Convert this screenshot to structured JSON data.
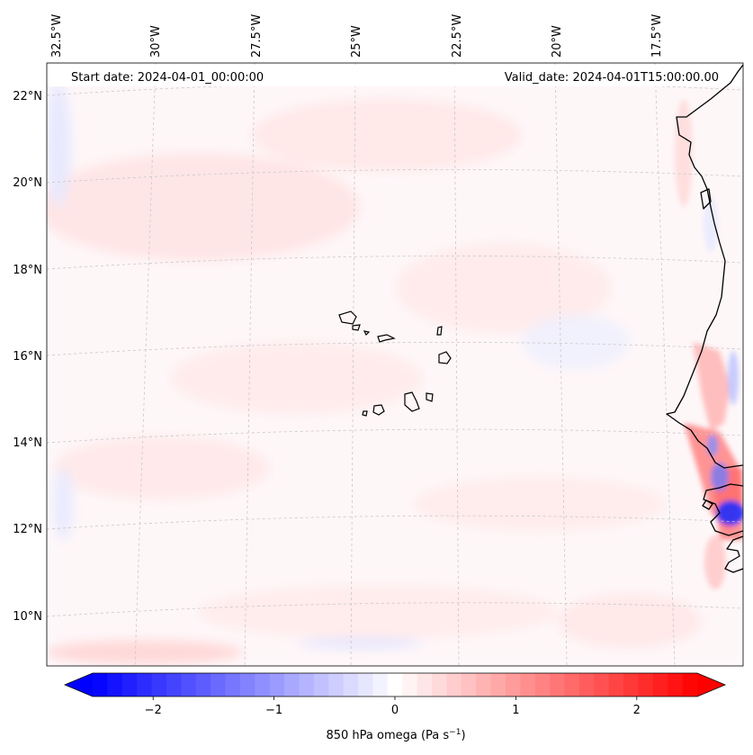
{
  "map": {
    "start_date": "Start date: 2024-04-01_00:00:00",
    "valid_date": "Valid_date: 2024-04-01T15:00:00.00",
    "lon_labels": [
      "32.5°W",
      "30°W",
      "27.5°W",
      "25°W",
      "22.5°W",
      "20°W",
      "17.5°W"
    ],
    "lat_labels": [
      "22°N",
      "20°N",
      "18°N",
      "16°N",
      "14°N",
      "12°N",
      "10°N"
    ]
  },
  "colorbar": {
    "label": "850 hPa omega (Pa s",
    "label_sup": "−1",
    "label_close": ")",
    "tick_labels": [
      "−2",
      "−1",
      "0",
      "1",
      "2"
    ],
    "tick_values": [
      -2,
      -1,
      0,
      1,
      2
    ],
    "range": [
      -2.5,
      2.5
    ],
    "levels": 41
  },
  "colors": {
    "negative": "#0000ff",
    "positive": "#ff0000",
    "coastline": "#000000",
    "gridline": "#c8c8c8"
  }
}
